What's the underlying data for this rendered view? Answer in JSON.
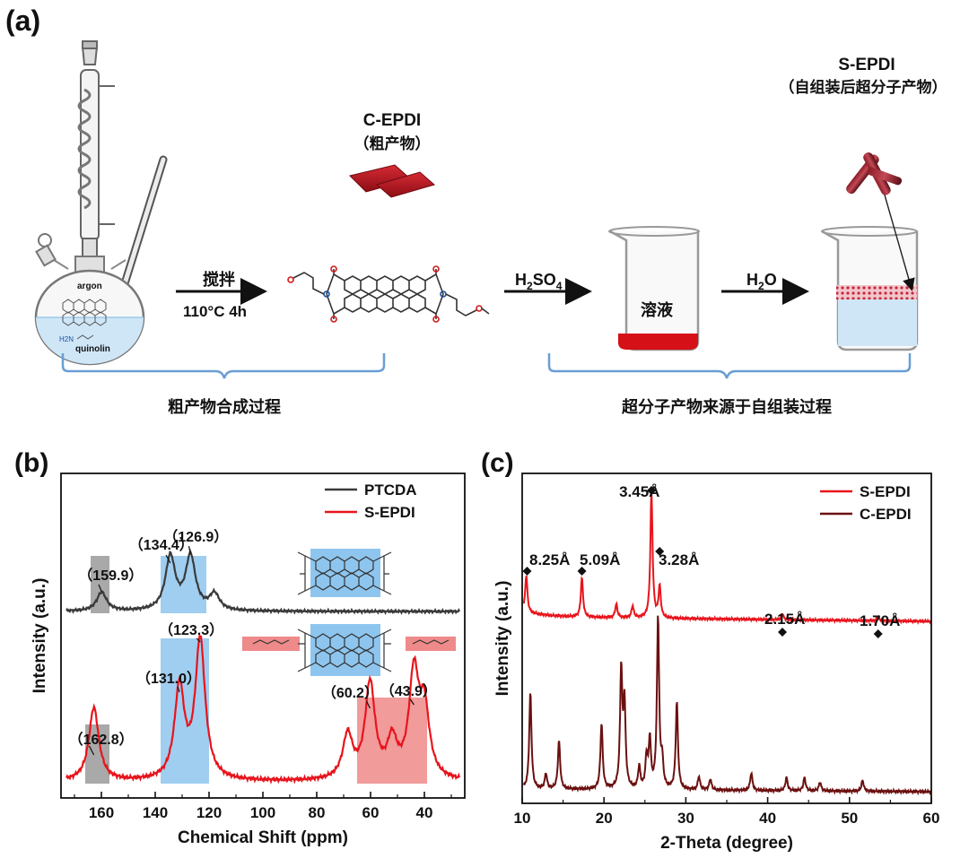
{
  "panel_labels": {
    "a": "(a)",
    "b": "(b)",
    "c": "(c)"
  },
  "scheme": {
    "flask_label": "argon",
    "flask_sub": "quinolin",
    "amine": "H2N",
    "step1_top": "搅拌",
    "step1_bottom": "110°C 4h",
    "crude_title": "C-EPDI",
    "crude_sub": "（粗产物）",
    "step2_reagent": "H2SO4",
    "solution_label": "溶液",
    "step3_reagent": "H2O",
    "product_title": "S-EPDI",
    "product_sub": "（自组装后超分子产物）",
    "left_bracket_caption": "粗产物合成过程",
    "right_bracket_caption": "超分子产物来源于自组装过程"
  },
  "chart_data": [
    {
      "type": "line",
      "panel": "b",
      "xlabel": "Chemical Shift (ppm)",
      "ylabel": "Intensity (a.u.)",
      "xlim": [
        175,
        25
      ],
      "x_reversed": true,
      "xticks": [
        160,
        140,
        120,
        100,
        80,
        60,
        40
      ],
      "legend": {
        "placement": "top-right",
        "entries": [
          "PTCDA",
          "S-EPDI"
        ]
      },
      "series": [
        {
          "name": "PTCDA",
          "color": "#3a3a3a",
          "peaks": [
            [
              159.9,
              0.35
            ],
            [
              134.4,
              1.0
            ],
            [
              126.9,
              1.0
            ],
            [
              118.0,
              0.3
            ]
          ]
        },
        {
          "name": "S-EPDI",
          "color": "#e8141c",
          "peaks": [
            [
              162.8,
              1.0
            ],
            [
              131.0,
              1.25
            ],
            [
              123.3,
              1.9
            ],
            [
              68.5,
              0.6
            ],
            [
              60.2,
              1.3
            ],
            [
              52.0,
              0.5
            ],
            [
              43.9,
              1.4
            ],
            [
              40.0,
              0.9
            ]
          ]
        }
      ],
      "annotations": [
        "（159.9）",
        "（134.4）",
        "（126.9）",
        "（123.3）",
        "（131.0）",
        "（162.8）",
        "（60.2）",
        "（43.9）"
      ],
      "highlight_regions": [
        {
          "series": "PTCDA",
          "from": 164,
          "to": 157,
          "color": "#9a9a9a"
        },
        {
          "series": "PTCDA",
          "from": 138,
          "to": 121,
          "color": "#8ec5ee"
        },
        {
          "series": "S-EPDI",
          "from": 166,
          "to": 157,
          "color": "#9a9a9a"
        },
        {
          "series": "S-EPDI",
          "from": 138,
          "to": 120,
          "color": "#8ec5ee"
        },
        {
          "series": "S-EPDI",
          "from": 65,
          "to": 39,
          "color": "#ef8a8a"
        }
      ]
    },
    {
      "type": "line",
      "panel": "c",
      "xlabel": "2-Theta (degree)",
      "ylabel": "Intensity (a.u.)",
      "xlim": [
        10,
        60
      ],
      "xticks": [
        10,
        20,
        30,
        40,
        50,
        60
      ],
      "legend": {
        "placement": "top-right",
        "entries": [
          "S-EPDI",
          "C-EPDI"
        ]
      },
      "series": [
        {
          "name": "S-EPDI",
          "color": "#e8141c",
          "peaks": [
            [
              10.5,
              0.95
            ],
            [
              17.3,
              1.0
            ],
            [
              21.5,
              0.35
            ],
            [
              23.5,
              0.3
            ],
            [
              25.8,
              3.2
            ],
            [
              26.8,
              0.8
            ],
            [
              41.8,
              0.15
            ],
            [
              53.5,
              0.1
            ]
          ]
        },
        {
          "name": "C-EPDI",
          "color": "#6b1010",
          "peaks": [
            [
              11.0,
              2.2
            ],
            [
              12.9,
              0.35
            ],
            [
              14.5,
              1.1
            ],
            [
              19.7,
              1.5
            ],
            [
              22.1,
              2.7
            ],
            [
              22.5,
              1.9
            ],
            [
              24.3,
              0.5
            ],
            [
              25.2,
              0.7
            ],
            [
              25.6,
              1.1
            ],
            [
              26.6,
              3.9
            ],
            [
              27.1,
              0.6
            ],
            [
              28.9,
              2.0
            ],
            [
              31.6,
              0.3
            ],
            [
              33.0,
              0.25
            ],
            [
              38.0,
              0.4
            ],
            [
              42.3,
              0.3
            ],
            [
              44.5,
              0.3
            ],
            [
              46.4,
              0.2
            ],
            [
              51.6,
              0.25
            ]
          ]
        }
      ],
      "annotations": [
        "8.25Å",
        "5.09Å",
        "3.45Å",
        "3.28Å",
        "2.15Å",
        "1.70Å"
      ]
    }
  ]
}
